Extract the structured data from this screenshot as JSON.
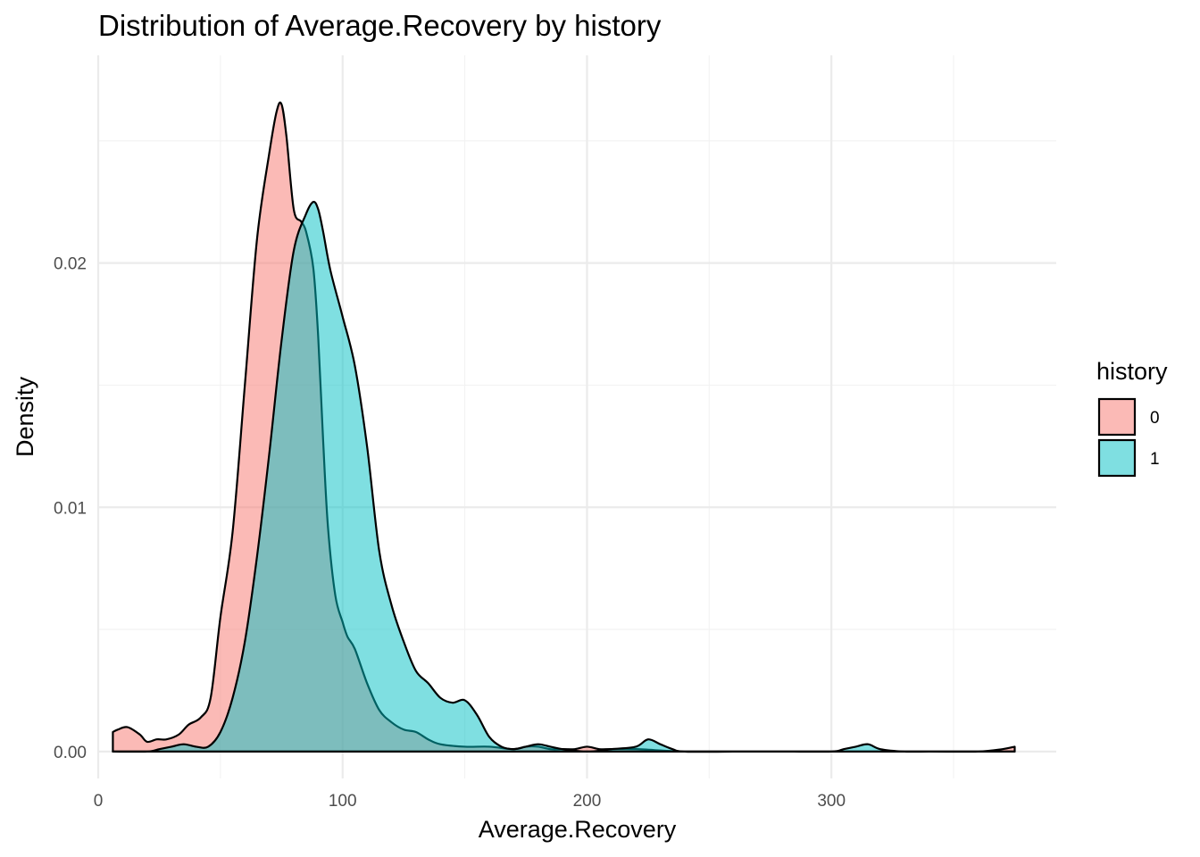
{
  "chart_data": {
    "type": "area",
    "subtype": "density",
    "title": "Distribution of Average.Recovery by history",
    "xlabel": "Average.Recovery",
    "ylabel": "Density",
    "xlim": [
      0,
      392
    ],
    "ylim": [
      -0.0011,
      0.0285
    ],
    "x_ticks": [
      0,
      100,
      200,
      300
    ],
    "x_tick_labels": [
      "0",
      "100",
      "200",
      "300"
    ],
    "y_ticks": [
      0,
      0.01,
      0.02
    ],
    "y_tick_labels": [
      "0.00",
      "0.01",
      "0.02"
    ],
    "grid": true,
    "legend": {
      "title": "history",
      "placement": "right"
    },
    "fill_opacity": 0.5,
    "series": [
      {
        "name": "0",
        "color": "#F8766D",
        "x": [
          6,
          8,
          12,
          17,
          20,
          24,
          28,
          33,
          37,
          42,
          46,
          50,
          55,
          60,
          65,
          70,
          73,
          75,
          77,
          80,
          83,
          85,
          88,
          90,
          92,
          94,
          97,
          100,
          102,
          105,
          110,
          115,
          120,
          125,
          130,
          135,
          140,
          150,
          160,
          170,
          175,
          180,
          185,
          190,
          195,
          200,
          205,
          210,
          220,
          240,
          260,
          280,
          300,
          320,
          340,
          360,
          370,
          375
        ],
        "y": [
          0.0008,
          0.0009,
          0.001,
          0.0007,
          0.0004,
          0.0005,
          0.0005,
          0.0007,
          0.0011,
          0.0014,
          0.0022,
          0.0055,
          0.009,
          0.015,
          0.021,
          0.0245,
          0.0262,
          0.0265,
          0.0252,
          0.0222,
          0.0217,
          0.0213,
          0.0198,
          0.017,
          0.0128,
          0.0092,
          0.0064,
          0.0053,
          0.0047,
          0.0042,
          0.0028,
          0.0017,
          0.0012,
          0.0009,
          0.0008,
          0.0005,
          0.0003,
          0.0002,
          0.0002,
          0.0001,
          0.0002,
          0.0002,
          0.0001,
          0.0001,
          0.0001,
          0.0002,
          0.0001,
          0.0001,
          0.0001,
          0.0,
          0.0,
          0.0,
          0.0,
          0.0,
          0.0,
          0.0,
          0.0001,
          0.0002
        ]
      },
      {
        "name": "1",
        "color": "#00BFC4",
        "x": [
          6,
          20,
          25,
          30,
          35,
          40,
          45,
          50,
          55,
          60,
          65,
          70,
          75,
          80,
          85,
          88,
          90,
          92,
          95,
          100,
          105,
          110,
          115,
          120,
          125,
          130,
          135,
          140,
          145,
          150,
          155,
          160,
          165,
          170,
          175,
          180,
          185,
          190,
          200,
          210,
          220,
          225,
          230,
          235,
          240,
          260,
          280,
          300,
          305,
          310,
          315,
          320,
          330,
          340,
          360,
          375
        ],
        "y": [
          0.0,
          0.0,
          0.0001,
          0.0002,
          0.0003,
          0.0002,
          0.0002,
          0.0008,
          0.0022,
          0.0045,
          0.008,
          0.0122,
          0.0168,
          0.0205,
          0.022,
          0.0225,
          0.0222,
          0.0213,
          0.0197,
          0.0178,
          0.0158,
          0.0125,
          0.0082,
          0.006,
          0.0045,
          0.0033,
          0.0028,
          0.0022,
          0.002,
          0.0021,
          0.0015,
          0.0006,
          0.0002,
          0.0001,
          0.0002,
          0.0003,
          0.0002,
          0.0001,
          0.0,
          0.0001,
          0.0002,
          0.0005,
          0.0003,
          0.0001,
          0.0,
          0.0,
          0.0,
          0.0,
          0.0001,
          0.0002,
          0.0003,
          0.0001,
          0.0,
          0.0,
          0.0,
          0.0
        ]
      }
    ]
  }
}
